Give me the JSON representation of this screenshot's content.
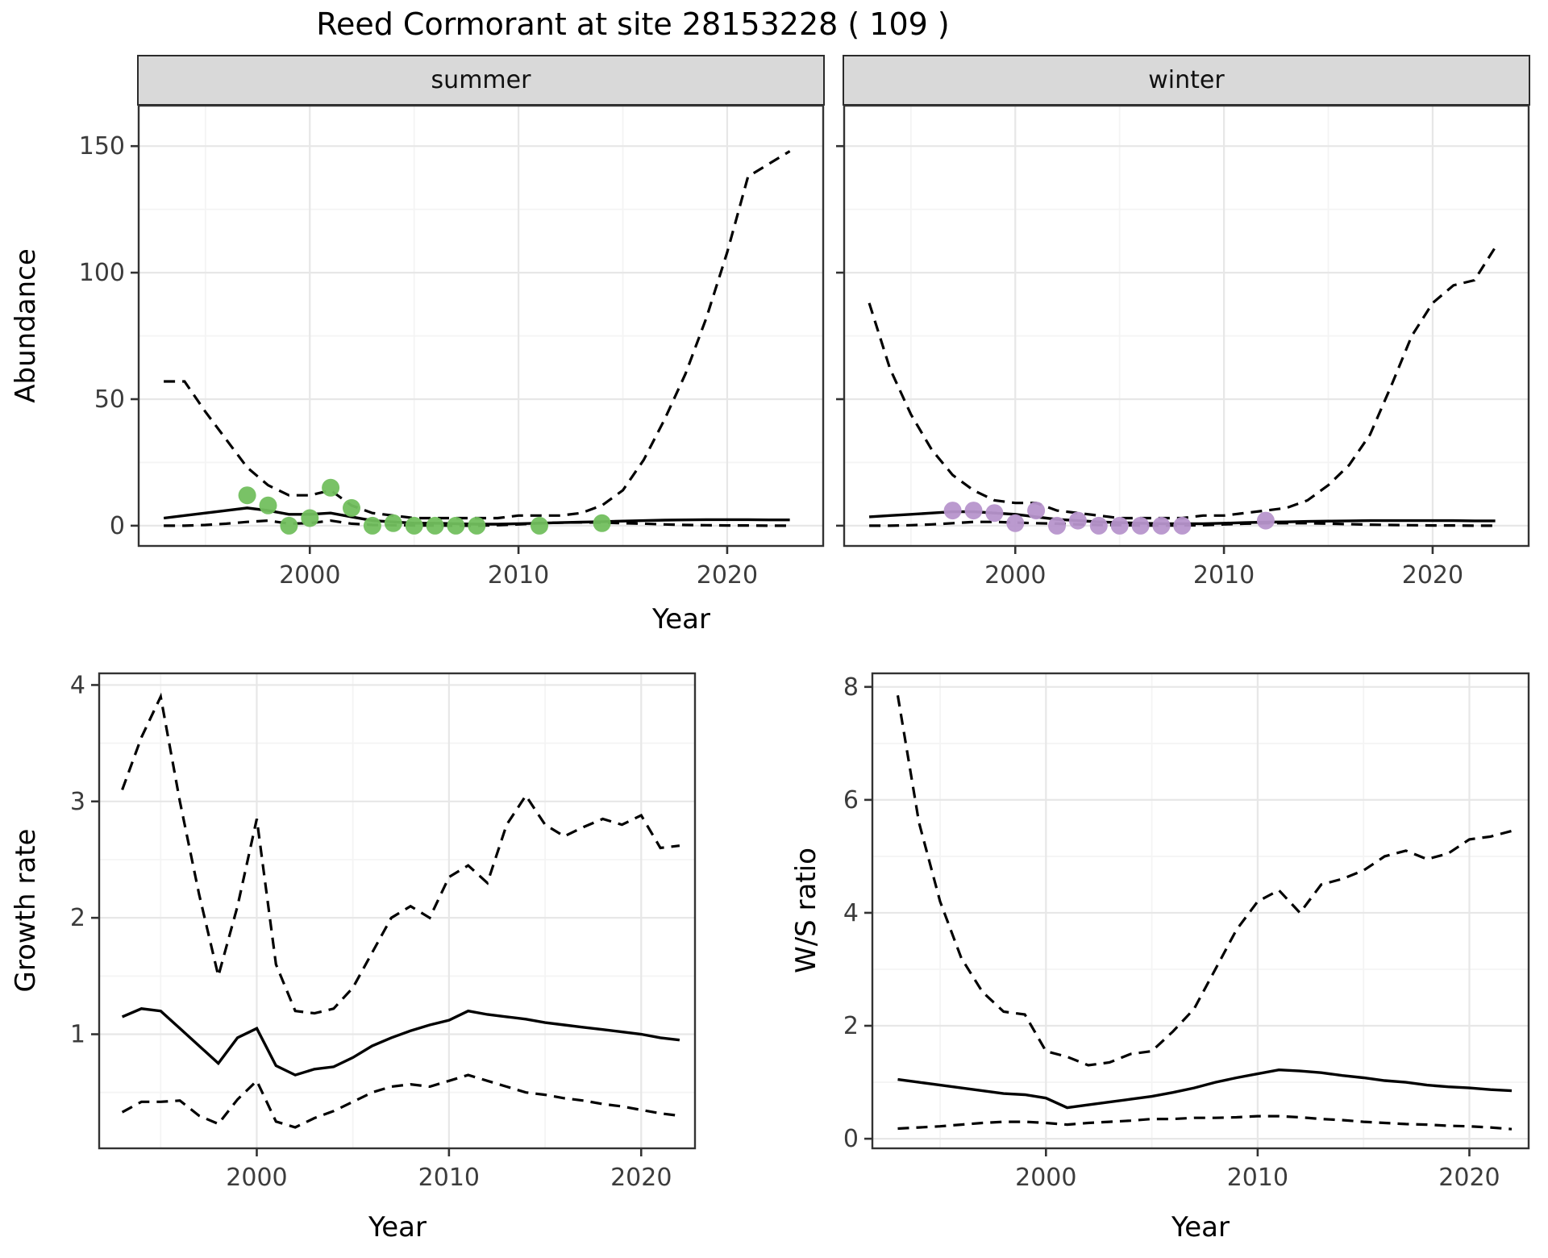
{
  "title": "Reed Cormorant at site 28153228 ( 109 )",
  "top_row": {
    "ylabel": "Abundance",
    "xlabel": "Year",
    "facets": [
      "summer",
      "winter"
    ]
  },
  "bottom_row": {
    "left_ylabel": "Growth rate",
    "right_ylabel": "W/S ratio",
    "xlabel": "Year"
  },
  "colors": {
    "summer_points": "#72bf5e",
    "winter_points": "#b795cc",
    "line": "#000000",
    "strip_fill": "#d9d9d9",
    "grid_major": "#e7e7e7",
    "grid_minor": "#f4f4f4",
    "panel_border": "#333333",
    "tick_text": "#3c3c3c"
  },
  "chart_data": [
    {
      "id": "summer",
      "type": "line",
      "facet": "summer",
      "xlabel": "Year",
      "ylabel": "Abundance",
      "xlim": [
        1991.8,
        2024.6
      ],
      "ylim": [
        -8,
        166
      ],
      "xticks": [
        2000,
        2010,
        2020
      ],
      "yticks": [
        0,
        50,
        100,
        150
      ],
      "xminor": [
        1995,
        2005,
        2015
      ],
      "yminor": [
        25,
        75,
        125
      ],
      "show_ylabels": true,
      "grid": true,
      "legend": "none",
      "series": [
        {
          "name": "upper_ci",
          "style": "dashed",
          "x": [
            1993,
            1994,
            1995,
            1996,
            1997,
            1998,
            1999,
            2000,
            2001,
            2002,
            2003,
            2004,
            2005,
            2006,
            2007,
            2008,
            2009,
            2010,
            2011,
            2012,
            2013,
            2014,
            2015,
            2016,
            2017,
            2018,
            2019,
            2020,
            2021,
            2022,
            2023
          ],
          "y": [
            57,
            57,
            45,
            34,
            23,
            16,
            12,
            12,
            14,
            8,
            5,
            4,
            3,
            3,
            3,
            3,
            3,
            4,
            4,
            4,
            5,
            8,
            14,
            26,
            42,
            60,
            82,
            108,
            138,
            143,
            148
          ]
        },
        {
          "name": "mean",
          "style": "solid",
          "x": [
            1993,
            1994,
            1995,
            1996,
            1997,
            1998,
            1999,
            2000,
            2001,
            2002,
            2003,
            2004,
            2005,
            2006,
            2007,
            2008,
            2009,
            2010,
            2011,
            2012,
            2013,
            2014,
            2015,
            2016,
            2017,
            2018,
            2019,
            2020,
            2021,
            2022,
            2023
          ],
          "y": [
            3,
            4,
            5,
            6,
            7,
            6,
            4.5,
            4.5,
            5,
            3.5,
            2,
            1.5,
            1,
            1,
            0.8,
            0.6,
            0.6,
            0.8,
            1,
            1.2,
            1.4,
            1.6,
            1.8,
            2,
            2.2,
            2.3,
            2.4,
            2.4,
            2.4,
            2.3,
            2.3
          ]
        },
        {
          "name": "lower_ci",
          "style": "dashed",
          "x": [
            1993,
            1994,
            1995,
            1996,
            1997,
            1998,
            1999,
            2000,
            2001,
            2002,
            2003,
            2004,
            2005,
            2006,
            2007,
            2008,
            2009,
            2010,
            2011,
            2012,
            2013,
            2014,
            2015,
            2016,
            2017,
            2018,
            2019,
            2020,
            2021,
            2022,
            2023
          ],
          "y": [
            0,
            0,
            0.3,
            0.8,
            1.5,
            2,
            0.8,
            1,
            2,
            0.8,
            0.3,
            0.2,
            0.1,
            0.1,
            0,
            0,
            0.2,
            0.5,
            1,
            1.2,
            1.3,
            1.2,
            1,
            0.8,
            0.5,
            0.3,
            0.2,
            0.1,
            0.1,
            0,
            0
          ]
        }
      ],
      "points": {
        "name": "observed_counts",
        "color_key": "summer_points",
        "x": [
          1997,
          1998,
          1999,
          2000,
          2001,
          2002,
          2003,
          2004,
          2005,
          2006,
          2007,
          2008,
          2011,
          2014
        ],
        "y": [
          12,
          8,
          0,
          3,
          15,
          7,
          0,
          1,
          0,
          0,
          0,
          0,
          0,
          1
        ]
      }
    },
    {
      "id": "winter",
      "type": "line",
      "facet": "winter",
      "xlabel": "Year",
      "ylabel": "Abundance",
      "xlim": [
        1991.8,
        2024.6
      ],
      "ylim": [
        -8,
        166
      ],
      "xticks": [
        2000,
        2010,
        2020
      ],
      "yticks": [
        0,
        50,
        100,
        150
      ],
      "xminor": [
        1995,
        2005,
        2015
      ],
      "yminor": [
        25,
        75,
        125
      ],
      "show_ylabels": false,
      "grid": true,
      "legend": "none",
      "series": [
        {
          "name": "upper_ci",
          "style": "dashed",
          "x": [
            1993,
            1994,
            1995,
            1996,
            1997,
            1998,
            1999,
            2000,
            2001,
            2002,
            2003,
            2004,
            2005,
            2006,
            2007,
            2008,
            2009,
            2010,
            2011,
            2012,
            2013,
            2014,
            2015,
            2016,
            2017,
            2018,
            2019,
            2020,
            2021,
            2022,
            2023
          ],
          "y": [
            88,
            62,
            44,
            30,
            20,
            14,
            10,
            9,
            9,
            6,
            5,
            4,
            3,
            3,
            3,
            3,
            4,
            4,
            5,
            6,
            7,
            10,
            16,
            24,
            36,
            55,
            75,
            88,
            95,
            97,
            110
          ]
        },
        {
          "name": "mean",
          "style": "solid",
          "x": [
            1993,
            1994,
            1995,
            1996,
            1997,
            1998,
            1999,
            2000,
            2001,
            2002,
            2003,
            2004,
            2005,
            2006,
            2007,
            2008,
            2009,
            2010,
            2011,
            2012,
            2013,
            2014,
            2015,
            2016,
            2017,
            2018,
            2019,
            2020,
            2021,
            2022,
            2023
          ],
          "y": [
            3.5,
            4,
            4.5,
            5,
            5.5,
            5.5,
            5,
            4.5,
            3.5,
            2.5,
            2,
            1.5,
            1.2,
            1,
            0.8,
            0.8,
            0.8,
            1,
            1.2,
            1.4,
            1.5,
            1.7,
            1.8,
            1.9,
            2,
            2,
            2,
            2,
            2,
            1.9,
            1.9
          ]
        },
        {
          "name": "lower_ci",
          "style": "dashed",
          "x": [
            1993,
            1994,
            1995,
            1996,
            1997,
            1998,
            1999,
            2000,
            2001,
            2002,
            2003,
            2004,
            2005,
            2006,
            2007,
            2008,
            2009,
            2010,
            2011,
            2012,
            2013,
            2014,
            2015,
            2016,
            2017,
            2018,
            2019,
            2020,
            2021,
            2022,
            2023
          ],
          "y": [
            0,
            0,
            0.2,
            0.5,
            1,
            1.5,
            1.5,
            1.2,
            1,
            0.8,
            0.5,
            0.3,
            0.2,
            0.1,
            0.1,
            0.1,
            0.2,
            0.5,
            0.8,
            1,
            1,
            1,
            0.8,
            0.6,
            0.4,
            0.3,
            0.2,
            0.1,
            0.1,
            0,
            0
          ]
        }
      ],
      "points": {
        "name": "observed_counts",
        "color_key": "winter_points",
        "x": [
          1997,
          1998,
          1999,
          2000,
          2001,
          2002,
          2003,
          2004,
          2005,
          2006,
          2007,
          2008,
          2012
        ],
        "y": [
          6,
          6,
          5,
          1,
          6,
          0,
          2,
          0,
          0,
          0,
          0,
          0,
          2
        ]
      }
    },
    {
      "id": "growth",
      "type": "line",
      "facet": null,
      "xlabel": "Year",
      "ylabel": "Growth rate",
      "xlim": [
        1991.8,
        2022.8
      ],
      "ylim": [
        0.02,
        4.1
      ],
      "xticks": [
        2000,
        2010,
        2020
      ],
      "yticks": [
        1,
        2,
        3,
        4
      ],
      "xminor": [
        1995,
        2005,
        2015
      ],
      "yminor": [
        0.5,
        1.5,
        2.5,
        3.5
      ],
      "show_ylabels": true,
      "grid": true,
      "legend": "none",
      "series": [
        {
          "name": "upper_ci",
          "style": "dashed",
          "x": [
            1993,
            1994,
            1995,
            1996,
            1997,
            1998,
            1999,
            2000,
            2001,
            2002,
            2003,
            2004,
            2005,
            2006,
            2007,
            2008,
            2009,
            2010,
            2011,
            2012,
            2013,
            2014,
            2015,
            2016,
            2017,
            2018,
            2019,
            2020,
            2021,
            2022
          ],
          "y": [
            3.1,
            3.55,
            3.9,
            3.0,
            2.2,
            1.5,
            2.1,
            2.85,
            1.6,
            1.2,
            1.18,
            1.22,
            1.4,
            1.7,
            2.0,
            2.1,
            2.0,
            2.35,
            2.45,
            2.3,
            2.8,
            3.05,
            2.8,
            2.7,
            2.78,
            2.85,
            2.8,
            2.88,
            2.6,
            2.62
          ]
        },
        {
          "name": "mean",
          "style": "solid",
          "x": [
            1993,
            1994,
            1995,
            1996,
            1997,
            1998,
            1999,
            2000,
            2001,
            2002,
            2003,
            2004,
            2005,
            2006,
            2007,
            2008,
            2009,
            2010,
            2011,
            2012,
            2013,
            2014,
            2015,
            2016,
            2017,
            2018,
            2019,
            2020,
            2021,
            2022
          ],
          "y": [
            1.15,
            1.22,
            1.2,
            1.05,
            0.9,
            0.75,
            0.97,
            1.05,
            0.73,
            0.65,
            0.7,
            0.72,
            0.8,
            0.9,
            0.97,
            1.03,
            1.08,
            1.12,
            1.2,
            1.17,
            1.15,
            1.13,
            1.1,
            1.08,
            1.06,
            1.04,
            1.02,
            1.0,
            0.97,
            0.95
          ]
        },
        {
          "name": "lower_ci",
          "style": "dashed",
          "x": [
            1993,
            1994,
            1995,
            1996,
            1997,
            1998,
            1999,
            2000,
            2001,
            2002,
            2003,
            2004,
            2005,
            2006,
            2007,
            2008,
            2009,
            2010,
            2011,
            2012,
            2013,
            2014,
            2015,
            2016,
            2017,
            2018,
            2019,
            2020,
            2021,
            2022
          ],
          "y": [
            0.33,
            0.42,
            0.42,
            0.43,
            0.3,
            0.23,
            0.44,
            0.6,
            0.25,
            0.2,
            0.28,
            0.34,
            0.42,
            0.5,
            0.55,
            0.57,
            0.55,
            0.6,
            0.65,
            0.6,
            0.55,
            0.5,
            0.48,
            0.45,
            0.43,
            0.4,
            0.38,
            0.35,
            0.32,
            0.3
          ]
        }
      ],
      "points": null
    },
    {
      "id": "ws",
      "type": "line",
      "facet": null,
      "xlabel": "Year",
      "ylabel": "W/S ratio",
      "xlim": [
        1991.8,
        2022.8
      ],
      "ylim": [
        -0.17,
        8.24
      ],
      "xticks": [
        2000,
        2010,
        2020
      ],
      "yticks": [
        0,
        2,
        4,
        6,
        8
      ],
      "xminor": [
        1995,
        2005,
        2015
      ],
      "yminor": [
        1,
        3,
        5,
        7
      ],
      "show_ylabels": true,
      "grid": true,
      "legend": "none",
      "series": [
        {
          "name": "upper_ci",
          "style": "dashed",
          "x": [
            1993,
            1994,
            1995,
            1996,
            1997,
            1998,
            1999,
            2000,
            2001,
            2002,
            2003,
            2004,
            2005,
            2006,
            2007,
            2008,
            2009,
            2010,
            2011,
            2012,
            2013,
            2014,
            2015,
            2016,
            2017,
            2018,
            2019,
            2020,
            2021,
            2022
          ],
          "y": [
            7.85,
            5.6,
            4.2,
            3.2,
            2.6,
            2.25,
            2.2,
            1.55,
            1.45,
            1.3,
            1.35,
            1.5,
            1.55,
            1.9,
            2.3,
            3.0,
            3.7,
            4.2,
            4.4,
            4.0,
            4.5,
            4.6,
            4.75,
            5.0,
            5.1,
            4.95,
            5.05,
            5.3,
            5.35,
            5.45
          ]
        },
        {
          "name": "mean",
          "style": "solid",
          "x": [
            1993,
            1994,
            1995,
            1996,
            1997,
            1998,
            1999,
            2000,
            2001,
            2002,
            2003,
            2004,
            2005,
            2006,
            2007,
            2008,
            2009,
            2010,
            2011,
            2012,
            2013,
            2014,
            2015,
            2016,
            2017,
            2018,
            2019,
            2020,
            2021,
            2022
          ],
          "y": [
            1.05,
            1.0,
            0.95,
            0.9,
            0.85,
            0.8,
            0.78,
            0.72,
            0.55,
            0.6,
            0.65,
            0.7,
            0.75,
            0.82,
            0.9,
            1.0,
            1.08,
            1.15,
            1.22,
            1.2,
            1.17,
            1.12,
            1.08,
            1.03,
            1.0,
            0.95,
            0.92,
            0.9,
            0.87,
            0.85
          ]
        },
        {
          "name": "lower_ci",
          "style": "dashed",
          "x": [
            1993,
            1994,
            1995,
            1996,
            1997,
            1998,
            1999,
            2000,
            2001,
            2002,
            2003,
            2004,
            2005,
            2006,
            2007,
            2008,
            2009,
            2010,
            2011,
            2012,
            2013,
            2014,
            2015,
            2016,
            2017,
            2018,
            2019,
            2020,
            2021,
            2022
          ],
          "y": [
            0.18,
            0.2,
            0.22,
            0.25,
            0.28,
            0.3,
            0.3,
            0.28,
            0.25,
            0.28,
            0.3,
            0.32,
            0.35,
            0.35,
            0.37,
            0.37,
            0.38,
            0.4,
            0.4,
            0.38,
            0.35,
            0.33,
            0.3,
            0.28,
            0.26,
            0.25,
            0.23,
            0.22,
            0.2,
            0.17
          ]
        }
      ],
      "points": null
    }
  ]
}
